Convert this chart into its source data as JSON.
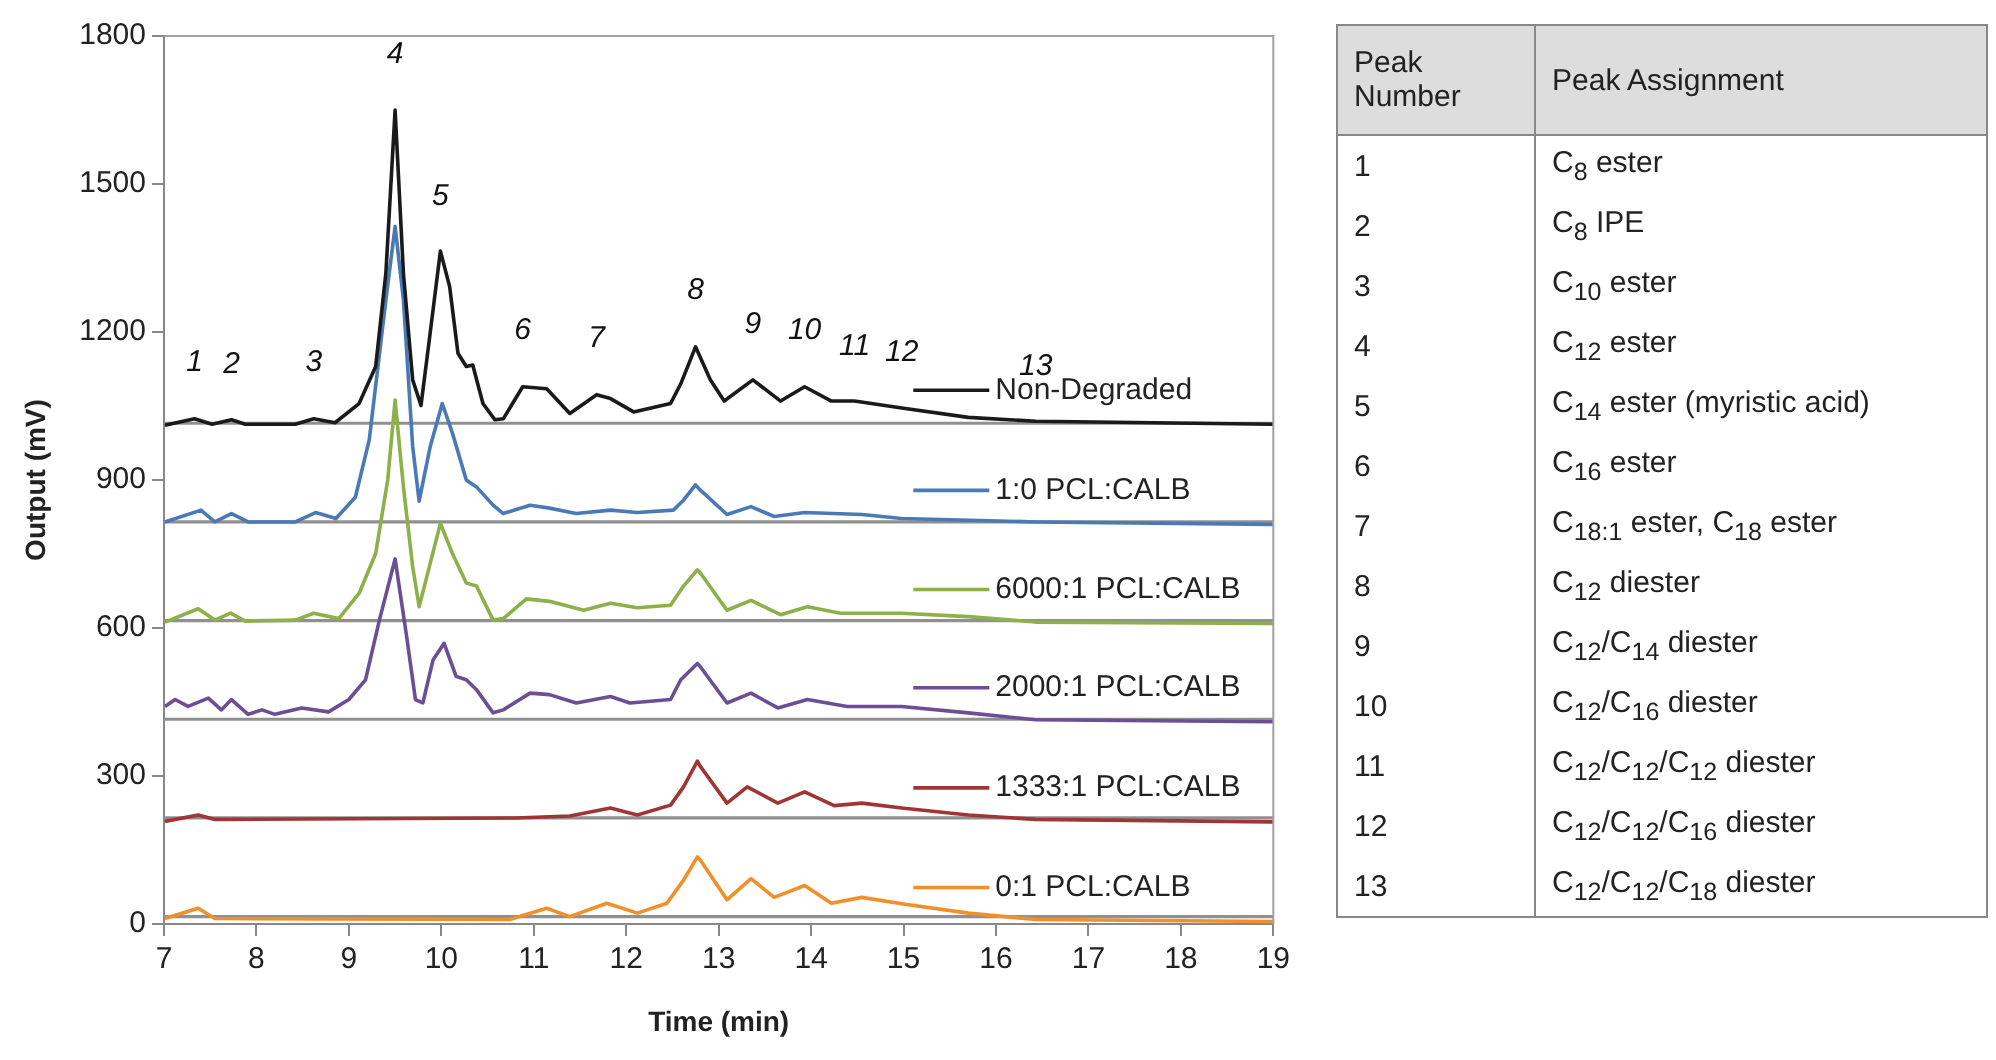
{
  "chart_data": {
    "type": "line",
    "xlabel": "Time (min)",
    "ylabel": "Output (mV)",
    "xlim": [
      7,
      19
    ],
    "xticks": [
      7,
      8,
      9,
      10,
      11,
      12,
      13,
      14,
      15,
      16,
      17,
      18,
      19
    ],
    "ylim": [
      0,
      1800
    ],
    "yticks": [
      0,
      300,
      600,
      900,
      1200,
      1500,
      1800
    ],
    "grid": false,
    "legend": "right",
    "marker": "none",
    "line_style": "solid",
    "series": [
      {
        "name": "Non-Degraded",
        "color": "#1a1a1a",
        "x": [
          7.01,
          7.33,
          7.52,
          7.73,
          7.88,
          8.42,
          8.62,
          8.85,
          9.11,
          9.29,
          9.4,
          9.5,
          9.59,
          9.69,
          9.78,
          9.87,
          9.99,
          10.09,
          10.18,
          10.27,
          10.34,
          10.45,
          10.58,
          10.67,
          10.88,
          11.14,
          11.39,
          11.68,
          11.83,
          12.08,
          12.48,
          12.59,
          12.75,
          12.91,
          13.06,
          13.37,
          13.67,
          13.93,
          14.22,
          14.47,
          14.98,
          15.7,
          16.43,
          19
        ],
        "values": [
          1011,
          1024,
          1013,
          1022,
          1013,
          1013,
          1024,
          1016,
          1055,
          1130,
          1319,
          1650,
          1319,
          1103,
          1051,
          1184,
          1364,
          1292,
          1157,
          1130,
          1133,
          1055,
          1022,
          1024,
          1089,
          1085,
          1035,
          1073,
          1065,
          1038,
          1055,
          1095,
          1170,
          1103,
          1060,
          1103,
          1060,
          1089,
          1060,
          1060,
          1046,
          1027,
          1019,
          1013
        ]
      },
      {
        "name": "1:0 PCL:CALB",
        "color": "#4a7ab5",
        "x": [
          7.01,
          7.4,
          7.55,
          7.73,
          7.91,
          8.42,
          8.64,
          8.86,
          9.07,
          9.22,
          9.4,
          9.5,
          9.59,
          9.69,
          9.76,
          9.88,
          10.01,
          10.12,
          10.27,
          10.38,
          10.56,
          10.67,
          10.96,
          11.17,
          11.46,
          11.83,
          12.12,
          12.51,
          12.62,
          12.75,
          12.8,
          13.09,
          13.35,
          13.6,
          13.93,
          14.55,
          14.98,
          16.43,
          19
        ],
        "values": [
          815,
          839,
          815,
          832,
          815,
          815,
          834,
          822,
          865,
          981,
          1265,
          1414,
          1265,
          968,
          857,
          968,
          1055,
          995,
          900,
          886,
          849,
          832,
          849,
          843,
          832,
          839,
          834,
          839,
          859,
          890,
          880,
          830,
          846,
          826,
          834,
          830,
          822,
          815,
          810
        ]
      },
      {
        "name": "6000:1 PCL:CALB",
        "color": "#8db04a",
        "x": [
          7.01,
          7.37,
          7.55,
          7.72,
          7.88,
          8.42,
          8.62,
          8.89,
          9.11,
          9.29,
          9.42,
          9.5,
          9.59,
          9.69,
          9.76,
          9.87,
          9.99,
          10.12,
          10.27,
          10.38,
          10.56,
          10.67,
          10.92,
          11.17,
          11.54,
          11.83,
          12.12,
          12.48,
          12.62,
          12.77,
          12.8,
          13.09,
          13.35,
          13.67,
          13.96,
          14.32,
          14.98,
          15.7,
          16.43,
          19
        ],
        "values": [
          612,
          639,
          616,
          630,
          614,
          616,
          630,
          619,
          670,
          751,
          900,
          1062,
          886,
          724,
          643,
          724,
          812,
          751,
          691,
          685,
          616,
          619,
          659,
          654,
          636,
          650,
          641,
          646,
          685,
          718,
          712,
          636,
          656,
          627,
          643,
          630,
          630,
          623,
          612,
          609
        ]
      },
      {
        "name": "2000:1 PCL:CALB",
        "color": "#6a4f96",
        "x": [
          7.01,
          7.12,
          7.26,
          7.48,
          7.62,
          7.73,
          7.91,
          8.06,
          8.2,
          8.49,
          8.78,
          9.0,
          9.18,
          9.33,
          9.5,
          9.62,
          9.72,
          9.8,
          9.91,
          10.03,
          10.16,
          10.27,
          10.38,
          10.56,
          10.67,
          10.96,
          11.17,
          11.46,
          11.83,
          12.04,
          12.48,
          12.59,
          12.77,
          12.8,
          13.09,
          13.35,
          13.64,
          13.96,
          14.39,
          14.98,
          15.7,
          16.43,
          19
        ],
        "values": [
          441,
          455,
          441,
          458,
          434,
          455,
          425,
          434,
          425,
          438,
          430,
          455,
          495,
          616,
          740,
          589,
          455,
          448,
          535,
          569,
          502,
          495,
          475,
          428,
          434,
          468,
          465,
          448,
          461,
          448,
          455,
          495,
          528,
          522,
          448,
          468,
          438,
          455,
          441,
          441,
          428,
          414,
          410
        ]
      },
      {
        "name": "1333:1 PCL:CALB",
        "color": "#a03535",
        "x": [
          7.01,
          7.37,
          7.55,
          10.8,
          11.39,
          11.83,
          12.12,
          12.48,
          12.62,
          12.77,
          12.8,
          13.09,
          13.31,
          13.64,
          13.93,
          14.25,
          14.55,
          14.98,
          15.7,
          16.43,
          19
        ],
        "values": [
          208,
          221,
          212,
          215,
          219,
          235,
          221,
          241,
          278,
          330,
          320,
          245,
          278,
          245,
          268,
          240,
          245,
          235,
          221,
          212,
          207
        ]
      },
      {
        "name": "0:1 PCL:CALB",
        "color": "#f0902a",
        "x": [
          7.01,
          7.37,
          7.55,
          10.74,
          11.14,
          11.39,
          11.79,
          12.12,
          12.44,
          12.62,
          12.77,
          12.8,
          13.09,
          13.35,
          13.6,
          13.93,
          14.22,
          14.55,
          14.98,
          15.7,
          16.43,
          19
        ],
        "values": [
          11,
          32,
          11,
          9,
          32,
          15,
          42,
          22,
          42,
          89,
          136,
          130,
          49,
          92,
          54,
          78,
          42,
          54,
          41,
          22,
          9,
          5
        ]
      }
    ],
    "ref_lines": [
      {
        "axis": "y",
        "value": 1015,
        "color": "#909090"
      },
      {
        "axis": "y",
        "value": 815,
        "color": "#909090"
      },
      {
        "axis": "y",
        "value": 615,
        "color": "#909090"
      },
      {
        "axis": "y",
        "value": 415,
        "color": "#909090"
      },
      {
        "axis": "y",
        "value": 215,
        "color": "#909090"
      },
      {
        "axis": "y",
        "value": 15,
        "color": "#909090"
      }
    ],
    "annotations": [
      {
        "text": "1",
        "x": 7.33,
        "y": 1024
      },
      {
        "text": "2",
        "x": 7.73,
        "y": 1022
      },
      {
        "text": "3",
        "x": 8.62,
        "y": 1024
      },
      {
        "text": "4",
        "x": 9.5,
        "y": 1650
      },
      {
        "text": "5",
        "x": 9.99,
        "y": 1364
      },
      {
        "text": "6",
        "x": 10.88,
        "y": 1089
      },
      {
        "text": "7",
        "x": 11.68,
        "y": 1073
      },
      {
        "text": "8",
        "x": 12.75,
        "y": 1170
      },
      {
        "text": "9",
        "x": 13.37,
        "y": 1103
      },
      {
        "text": "10",
        "x": 13.93,
        "y": 1089
      },
      {
        "text": "11",
        "x": 14.47,
        "y": 1060
      },
      {
        "text": "12",
        "x": 14.98,
        "y": 1046
      },
      {
        "text": "13",
        "x": 16.43,
        "y": 1019
      },
      "Peak Number",
      "Peak Assignment",
      "1",
      "C$_{8}$ ester",
      "2",
      "C$_{8}$ IPE",
      "3",
      "C$_{10}$ ester",
      "4",
      "C$_{12}$ ester",
      "5",
      "C$_{14}$ ester (myristic acid)",
      "6",
      "C$_{16}$ ester",
      "7",
      "C$_{18:1}$ ester, C$_{18}$ ester",
      "8",
      "C$_{12}$ diester",
      "9",
      "C$_{12}$/C$_{14}$ diester",
      "10",
      "C$_{12}$/C$_{16}$ diester",
      "11",
      "C$_{12}$/C$_{12}$/C$_{12}$ diester",
      "12",
      "C$_{12}$/C$_{12}$/C$_{16}$ diester",
      "13",
      "C$_{12}$/C$_{12}$/C$_{18}$ diester"
    ]
  }
}
